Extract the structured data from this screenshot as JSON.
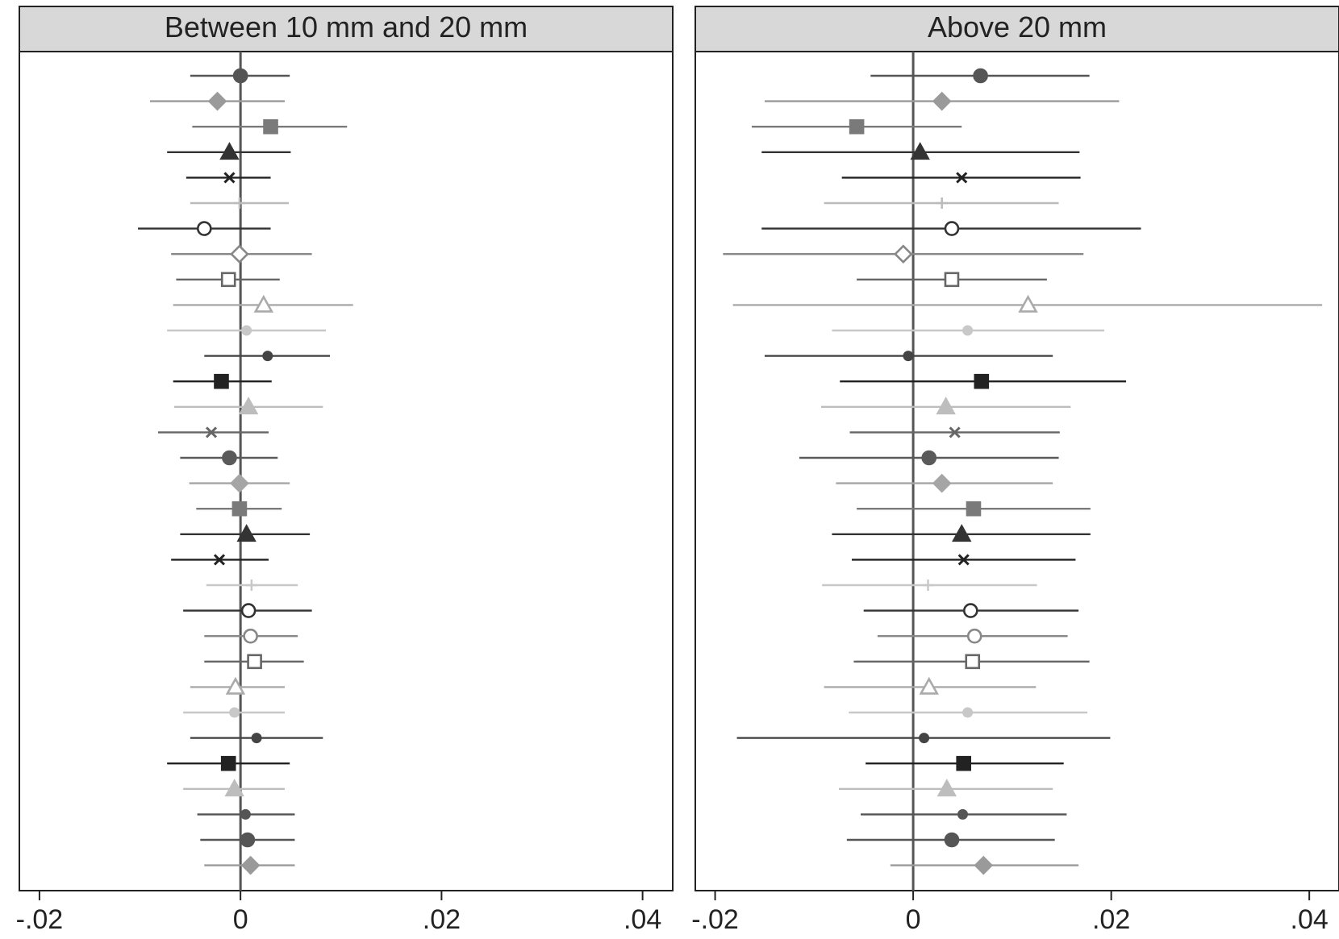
{
  "chart_data": [
    {
      "type": "scatter",
      "subtype": "coefficient-plot",
      "title": "Between 10 mm and 20 mm",
      "xlabel": "",
      "ylabel": "",
      "xlim": [
        -0.022,
        0.043
      ],
      "xticks": [
        -0.02,
        0,
        0.02,
        0.04
      ],
      "xtick_labels": [
        "-.02",
        "0",
        ".02",
        ".04"
      ],
      "reference_line_x": 0,
      "grid": false,
      "points": [
        {
          "est": 0.0,
          "lo": -0.005,
          "hi": 0.0049
        },
        {
          "est": -0.0023,
          "lo": -0.009,
          "hi": 0.0044
        },
        {
          "est": 0.003,
          "lo": -0.0048,
          "hi": 0.0106
        },
        {
          "est": -0.0011,
          "lo": -0.0073,
          "hi": 0.005
        },
        {
          "est": -0.0011,
          "lo": -0.0054,
          "hi": 0.003
        },
        {
          "est": -0.0001,
          "lo": -0.005,
          "hi": 0.0048
        },
        {
          "est": -0.0036,
          "lo": -0.0102,
          "hi": 0.003
        },
        {
          "est": -0.0001,
          "lo": -0.0069,
          "hi": 0.0071
        },
        {
          "est": -0.0012,
          "lo": -0.0064,
          "hi": 0.0039
        },
        {
          "est": 0.0023,
          "lo": -0.0067,
          "hi": 0.0112
        },
        {
          "est": 0.0006,
          "lo": -0.0073,
          "hi": 0.0085
        },
        {
          "est": 0.0027,
          "lo": -0.0036,
          "hi": 0.0089
        },
        {
          "est": -0.0019,
          "lo": -0.0067,
          "hi": 0.0031
        },
        {
          "est": 0.0008,
          "lo": -0.0066,
          "hi": 0.0082
        },
        {
          "est": -0.0029,
          "lo": -0.0082,
          "hi": 0.0028
        },
        {
          "est": -0.0011,
          "lo": -0.006,
          "hi": 0.0037
        },
        {
          "est": -0.0001,
          "lo": -0.0051,
          "hi": 0.0049
        },
        {
          "est": -0.0001,
          "lo": -0.0044,
          "hi": 0.0041
        },
        {
          "est": 0.0006,
          "lo": -0.006,
          "hi": 0.0069
        },
        {
          "est": -0.0021,
          "lo": -0.0069,
          "hi": 0.0028
        },
        {
          "est": 0.0011,
          "lo": -0.0034,
          "hi": 0.0057
        },
        {
          "est": 0.0008,
          "lo": -0.0057,
          "hi": 0.0071
        },
        {
          "est": 0.001,
          "lo": -0.0036,
          "hi": 0.0057
        },
        {
          "est": 0.0014,
          "lo": -0.0036,
          "hi": 0.0063
        },
        {
          "est": -0.0005,
          "lo": -0.005,
          "hi": 0.0044
        },
        {
          "est": -0.0006,
          "lo": -0.0057,
          "hi": 0.0044
        },
        {
          "est": 0.0016,
          "lo": -0.005,
          "hi": 0.0082
        },
        {
          "est": -0.0012,
          "lo": -0.0073,
          "hi": 0.0049
        },
        {
          "est": -0.0006,
          "lo": -0.0057,
          "hi": 0.0044
        },
        {
          "est": 0.0005,
          "lo": -0.0043,
          "hi": 0.0054
        },
        {
          "est": 0.0007,
          "lo": -0.004,
          "hi": 0.0054
        },
        {
          "est": 0.001,
          "lo": -0.0036,
          "hi": 0.0054
        }
      ]
    },
    {
      "type": "scatter",
      "subtype": "coefficient-plot",
      "title": "Above 20 mm",
      "xlabel": "",
      "ylabel": "",
      "xlim": [
        -0.022,
        0.043
      ],
      "xticks": [
        -0.02,
        0,
        0.02,
        0.04
      ],
      "xtick_labels": [
        "-.02",
        "0",
        ".02",
        ".04"
      ],
      "reference_line_x": 0,
      "grid": false,
      "points": [
        {
          "est": 0.0068,
          "lo": -0.0043,
          "hi": 0.0178
        },
        {
          "est": 0.0029,
          "lo": -0.015,
          "hi": 0.0208
        },
        {
          "est": -0.0057,
          "lo": -0.0163,
          "hi": 0.0049
        },
        {
          "est": 0.0007,
          "lo": -0.0153,
          "hi": 0.0168
        },
        {
          "est": 0.0049,
          "lo": -0.0072,
          "hi": 0.0169
        },
        {
          "est": 0.0029,
          "lo": -0.009,
          "hi": 0.0147
        },
        {
          "est": 0.0039,
          "lo": -0.0153,
          "hi": 0.023
        },
        {
          "est": -0.001,
          "lo": -0.0192,
          "hi": 0.0172
        },
        {
          "est": 0.0039,
          "lo": -0.0057,
          "hi": 0.0135
        },
        {
          "est": 0.0116,
          "lo": -0.0182,
          "hi": 0.0413
        },
        {
          "est": 0.0055,
          "lo": -0.0082,
          "hi": 0.0193
        },
        {
          "est": -0.0005,
          "lo": -0.015,
          "hi": 0.0141
        },
        {
          "est": 0.0069,
          "lo": -0.0074,
          "hi": 0.0215
        },
        {
          "est": 0.0033,
          "lo": -0.0093,
          "hi": 0.0159
        },
        {
          "est": 0.0042,
          "lo": -0.0064,
          "hi": 0.0148
        },
        {
          "est": 0.0016,
          "lo": -0.0115,
          "hi": 0.0147
        },
        {
          "est": 0.0029,
          "lo": -0.0078,
          "hi": 0.0141
        },
        {
          "est": 0.0061,
          "lo": -0.0057,
          "hi": 0.0179
        },
        {
          "est": 0.0049,
          "lo": -0.0082,
          "hi": 0.0179
        },
        {
          "est": 0.0051,
          "lo": -0.0062,
          "hi": 0.0164
        },
        {
          "est": 0.0015,
          "lo": -0.0092,
          "hi": 0.0125
        },
        {
          "est": 0.0058,
          "lo": -0.005,
          "hi": 0.0167
        },
        {
          "est": 0.0062,
          "lo": -0.0036,
          "hi": 0.0156
        },
        {
          "est": 0.006,
          "lo": -0.006,
          "hi": 0.0178
        },
        {
          "est": 0.0016,
          "lo": -0.009,
          "hi": 0.0124
        },
        {
          "est": 0.0055,
          "lo": -0.0065,
          "hi": 0.0176
        },
        {
          "est": 0.0011,
          "lo": -0.0178,
          "hi": 0.0199
        },
        {
          "est": 0.0051,
          "lo": -0.0048,
          "hi": 0.0152
        },
        {
          "est": 0.0034,
          "lo": -0.0075,
          "hi": 0.0141
        },
        {
          "est": 0.005,
          "lo": -0.0053,
          "hi": 0.0155
        },
        {
          "est": 0.0039,
          "lo": -0.0067,
          "hi": 0.0143
        },
        {
          "est": 0.0071,
          "lo": -0.0023,
          "hi": 0.0167
        }
      ]
    }
  ],
  "series_styles": [
    {
      "marker": "circle",
      "filled": true,
      "color": "#555555"
    },
    {
      "marker": "diamond",
      "filled": true,
      "color": "#9a9a9a"
    },
    {
      "marker": "square",
      "filled": true,
      "color": "#7a7a7a"
    },
    {
      "marker": "triangle",
      "filled": true,
      "color": "#333333"
    },
    {
      "marker": "x",
      "filled": false,
      "color": "#222222"
    },
    {
      "marker": "plus",
      "filled": false,
      "color": "#bbbbbb"
    },
    {
      "marker": "circle",
      "filled": false,
      "color": "#333333"
    },
    {
      "marker": "diamond",
      "filled": false,
      "color": "#888888"
    },
    {
      "marker": "square",
      "filled": false,
      "color": "#666666"
    },
    {
      "marker": "triangle",
      "filled": false,
      "color": "#aaaaaa"
    },
    {
      "marker": "dot",
      "filled": true,
      "color": "#c8c8c8"
    },
    {
      "marker": "dot",
      "filled": true,
      "color": "#444444"
    },
    {
      "marker": "square",
      "filled": true,
      "color": "#222222"
    },
    {
      "marker": "triangle",
      "filled": true,
      "color": "#bdbdbd"
    },
    {
      "marker": "x",
      "filled": false,
      "color": "#666666"
    },
    {
      "marker": "circle",
      "filled": true,
      "color": "#5a5a5a"
    },
    {
      "marker": "diamond",
      "filled": true,
      "color": "#a5a5a5"
    },
    {
      "marker": "square",
      "filled": true,
      "color": "#7a7a7a"
    },
    {
      "marker": "triangle",
      "filled": true,
      "color": "#333333"
    },
    {
      "marker": "x",
      "filled": false,
      "color": "#222222"
    },
    {
      "marker": "plus",
      "filled": false,
      "color": "#c8c8c8"
    },
    {
      "marker": "circle",
      "filled": false,
      "color": "#333333"
    },
    {
      "marker": "circle",
      "filled": false,
      "color": "#888888"
    },
    {
      "marker": "square",
      "filled": false,
      "color": "#666666"
    },
    {
      "marker": "triangle",
      "filled": false,
      "color": "#aaaaaa"
    },
    {
      "marker": "dot",
      "filled": true,
      "color": "#c8c8c8"
    },
    {
      "marker": "dot",
      "filled": true,
      "color": "#444444"
    },
    {
      "marker": "square",
      "filled": true,
      "color": "#222222"
    },
    {
      "marker": "triangle",
      "filled": true,
      "color": "#bdbdbd"
    },
    {
      "marker": "dot",
      "filled": true,
      "color": "#555555"
    },
    {
      "marker": "circle",
      "filled": true,
      "color": "#555555"
    },
    {
      "marker": "diamond",
      "filled": true,
      "color": "#9a9a9a"
    }
  ],
  "colors": {
    "title_bar": "#d8d8d8",
    "frame": "#222222",
    "reference_line": "#555555",
    "tick_text": "#222222"
  }
}
